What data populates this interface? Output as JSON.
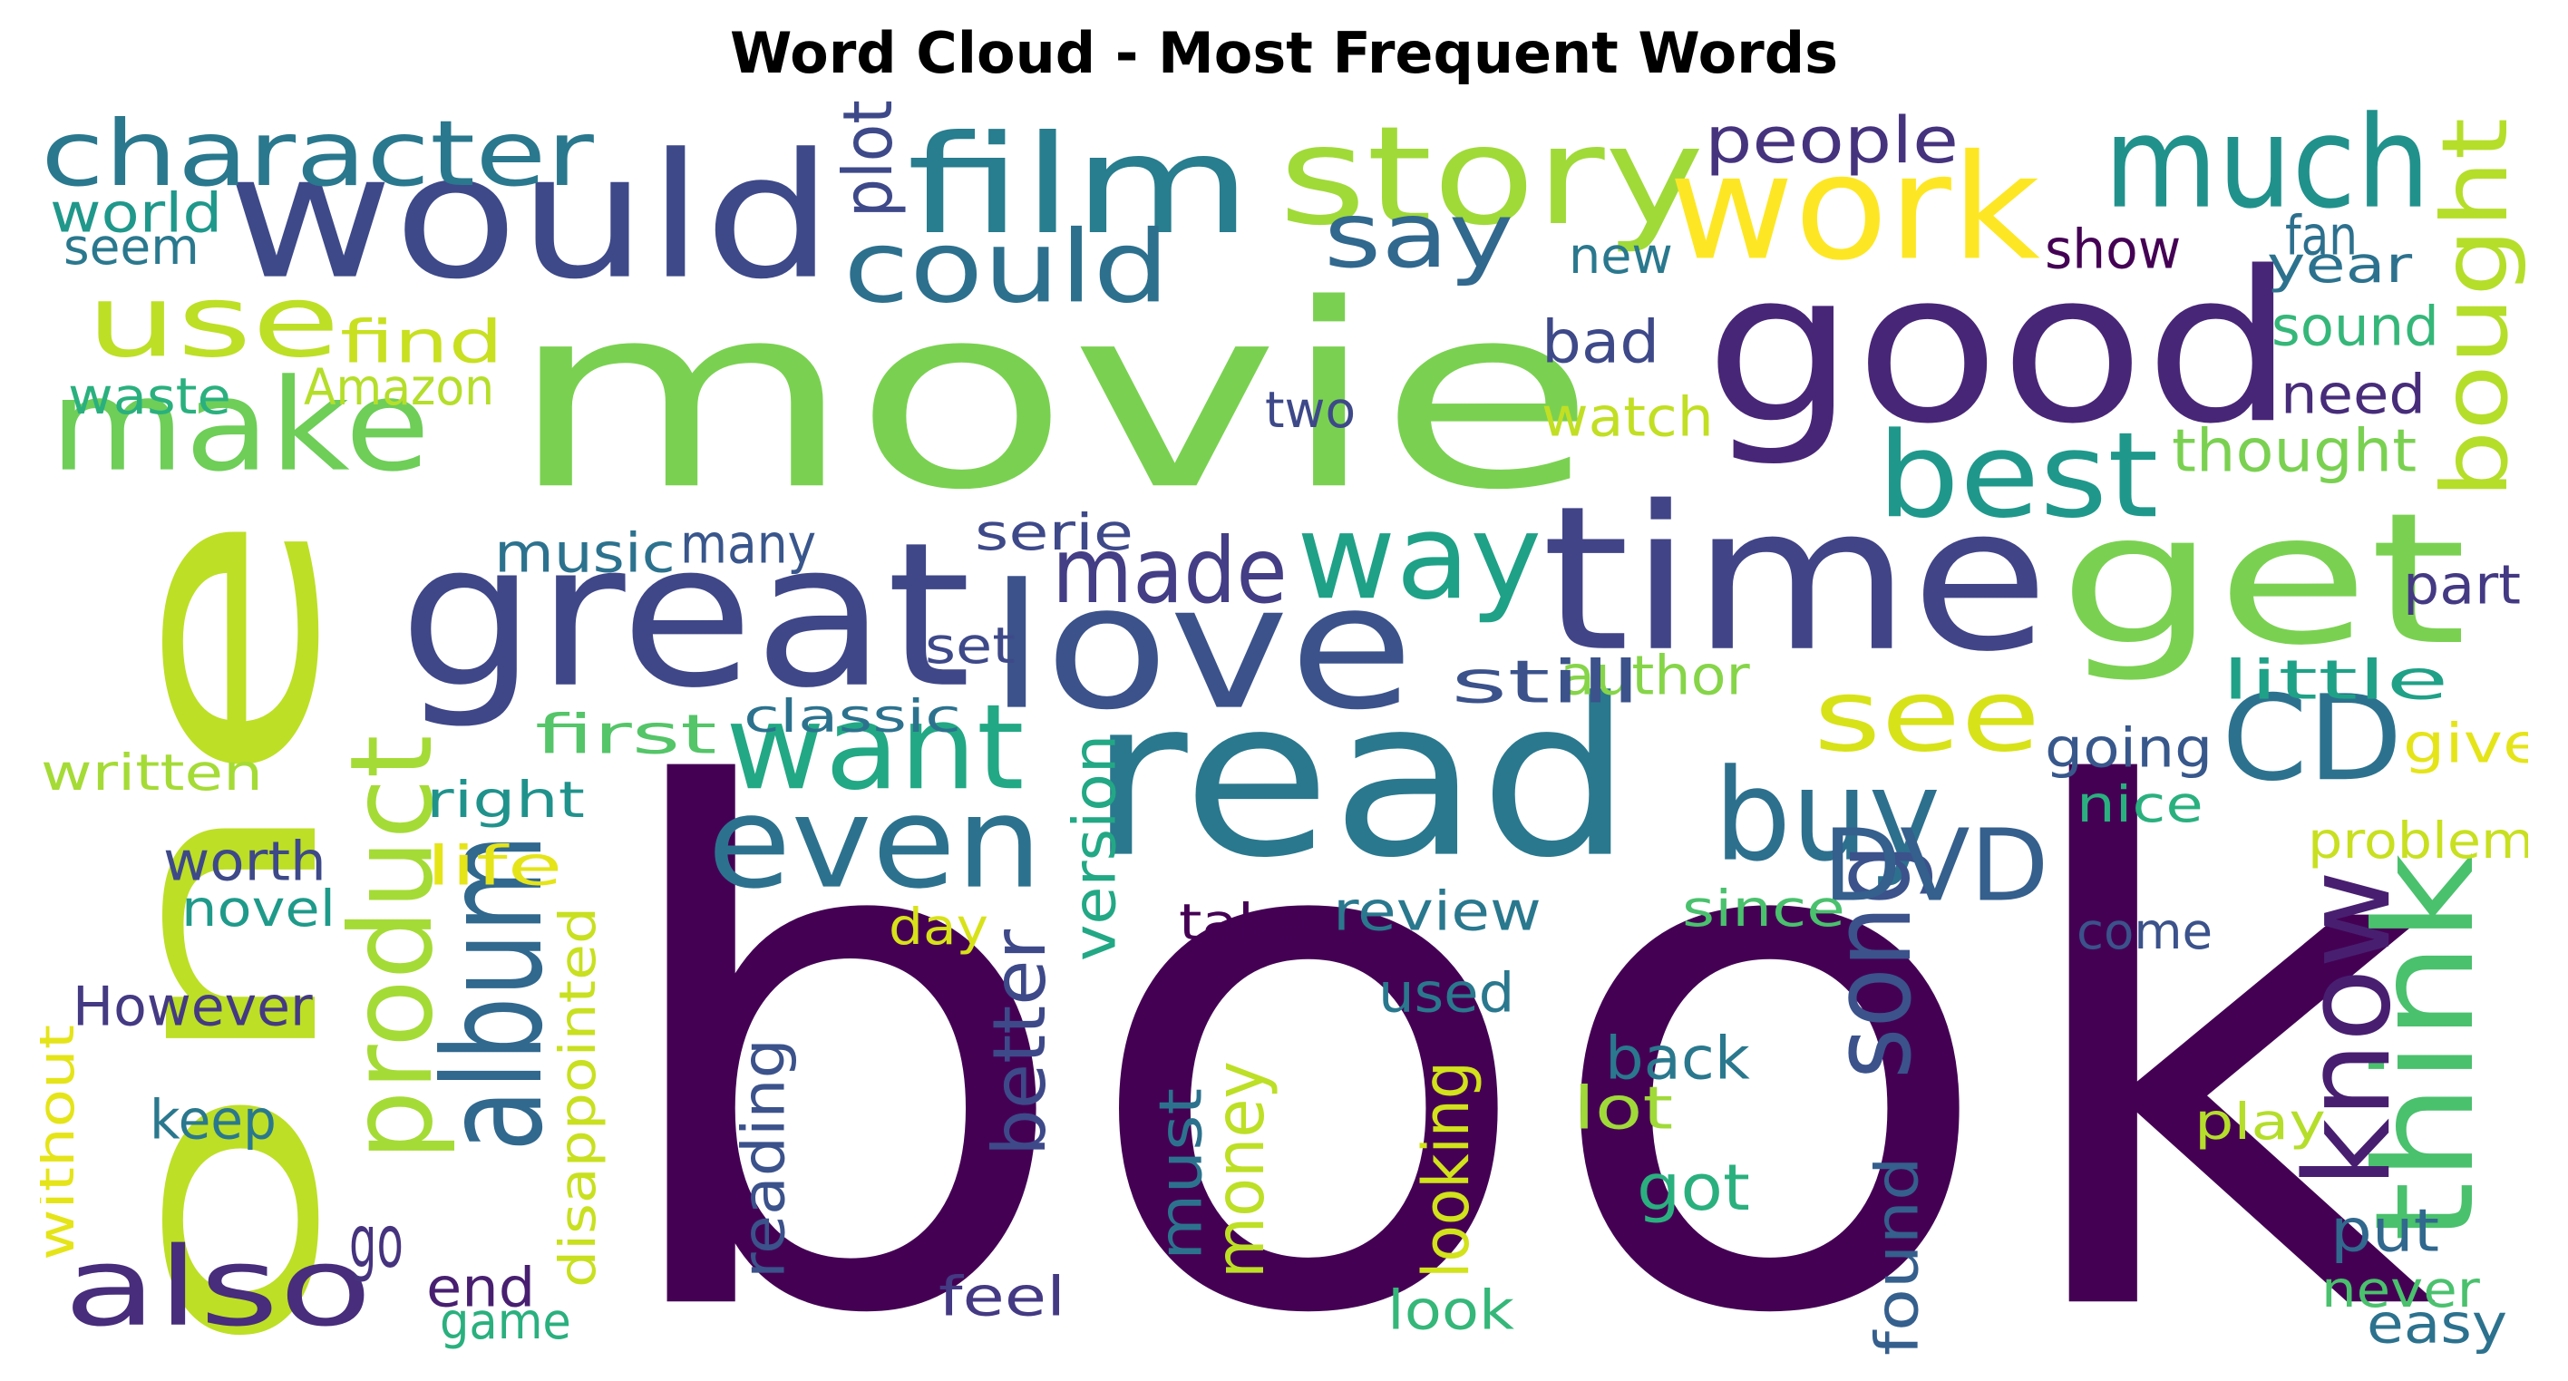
{
  "chart_data": {
    "type": "wordcloud",
    "title": "Word Cloud - Most Frequent Words",
    "words": [
      {
        "text": "book",
        "color": "#440154"
      },
      {
        "text": "one",
        "color": "#bddf26"
      },
      {
        "text": "movie",
        "color": "#7ad151"
      },
      {
        "text": "read",
        "color": "#2a788e"
      },
      {
        "text": "good",
        "color": "#482677"
      },
      {
        "text": "great",
        "color": "#3f4788"
      },
      {
        "text": "time",
        "color": "#414487"
      },
      {
        "text": "get",
        "color": "#7ad151"
      },
      {
        "text": "would",
        "color": "#3e4989"
      },
      {
        "text": "love",
        "color": "#3b528b"
      },
      {
        "text": "film",
        "color": "#287d8e"
      },
      {
        "text": "story",
        "color": "#a0da39"
      },
      {
        "text": "work",
        "color": "#fde725"
      },
      {
        "text": "much",
        "color": "#21918c"
      },
      {
        "text": "make",
        "color": "#6ece58"
      },
      {
        "text": "even",
        "color": "#2c728e"
      },
      {
        "text": "want",
        "color": "#22a884"
      },
      {
        "text": "also",
        "color": "#472d7b"
      },
      {
        "text": "album",
        "color": "#31688e"
      },
      {
        "text": "product",
        "color": "#a5db36"
      },
      {
        "text": "think",
        "color": "#4ac16d"
      },
      {
        "text": "way",
        "color": "#1fa187"
      },
      {
        "text": "buy",
        "color": "#2d708e"
      },
      {
        "text": "CD",
        "color": "#2c728e"
      },
      {
        "text": "best",
        "color": "#1f988b"
      },
      {
        "text": "character",
        "color": "#2a788e"
      },
      {
        "text": "use",
        "color": "#bddf26"
      },
      {
        "text": "could",
        "color": "#2d708e"
      },
      {
        "text": "know",
        "color": "#481f70"
      },
      {
        "text": "see",
        "color": "#d8e219"
      },
      {
        "text": "made",
        "color": "#433e85"
      },
      {
        "text": "song",
        "color": "#3b528b"
      },
      {
        "text": "say",
        "color": "#31688e"
      },
      {
        "text": "DVD",
        "color": "#355f8d"
      },
      {
        "text": "bought",
        "color": "#b5de2b"
      },
      {
        "text": "people",
        "color": "#46337e"
      },
      {
        "text": "plot",
        "color": "#3e4989"
      },
      {
        "text": "world",
        "color": "#1f988b"
      },
      {
        "text": "seem",
        "color": "#2a788e"
      },
      {
        "text": "find",
        "color": "#c8e020"
      },
      {
        "text": "Amazon",
        "color": "#b5de2b"
      },
      {
        "text": "waste",
        "color": "#2ab07f"
      },
      {
        "text": "new",
        "color": "#2a788e"
      },
      {
        "text": "bad",
        "color": "#3e4989"
      },
      {
        "text": "two",
        "color": "#3e4989"
      },
      {
        "text": "watch",
        "color": "#c2df23"
      },
      {
        "text": "show",
        "color": "#440154"
      },
      {
        "text": "fan",
        "color": "#2d708e"
      },
      {
        "text": "year",
        "color": "#2c728e"
      },
      {
        "text": "sound",
        "color": "#35b779"
      },
      {
        "text": "need",
        "color": "#472c7a"
      },
      {
        "text": "thought",
        "color": "#7ad151"
      },
      {
        "text": "music",
        "color": "#2c728e"
      },
      {
        "text": "many",
        "color": "#39568c"
      },
      {
        "text": "serie",
        "color": "#3e4989"
      },
      {
        "text": "part",
        "color": "#443983"
      },
      {
        "text": "author",
        "color": "#86d549"
      },
      {
        "text": "little",
        "color": "#1fa187"
      },
      {
        "text": "still",
        "color": "#3b528b"
      },
      {
        "text": "set",
        "color": "#3e4989"
      },
      {
        "text": "classic",
        "color": "#2c728e"
      },
      {
        "text": "first",
        "color": "#54c568"
      },
      {
        "text": "written",
        "color": "#a5db36"
      },
      {
        "text": "going",
        "color": "#38588c"
      },
      {
        "text": "give",
        "color": "#e5e419"
      },
      {
        "text": "right",
        "color": "#20928c"
      },
      {
        "text": "nice",
        "color": "#2ab07f"
      },
      {
        "text": "problem",
        "color": "#c8e020"
      },
      {
        "text": "worth",
        "color": "#3e4989"
      },
      {
        "text": "life",
        "color": "#e5e419"
      },
      {
        "text": "novel",
        "color": "#1f9a8a"
      },
      {
        "text": "review",
        "color": "#2a788e"
      },
      {
        "text": "since",
        "color": "#4ac16d"
      },
      {
        "text": "come",
        "color": "#3b528b"
      },
      {
        "text": "day",
        "color": "#d8e219"
      },
      {
        "text": "take",
        "color": "#440154"
      },
      {
        "text": "version",
        "color": "#22a884"
      },
      {
        "text": "However",
        "color": "#443983"
      },
      {
        "text": "used",
        "color": "#2a788e"
      },
      {
        "text": "disappointed",
        "color": "#c8e020"
      },
      {
        "text": "better",
        "color": "#3e4989"
      },
      {
        "text": "back",
        "color": "#2a788e"
      },
      {
        "text": "lot",
        "color": "#a0da39"
      },
      {
        "text": "play",
        "color": "#b5de2b"
      },
      {
        "text": "keep",
        "color": "#2a788e"
      },
      {
        "text": "without",
        "color": "#e5e419"
      },
      {
        "text": "reading",
        "color": "#3b528b"
      },
      {
        "text": "money",
        "color": "#bddf26"
      },
      {
        "text": "must",
        "color": "#2c728e"
      },
      {
        "text": "looking",
        "color": "#d2e21b"
      },
      {
        "text": "got",
        "color": "#2ab07f"
      },
      {
        "text": "go",
        "color": "#46337e"
      },
      {
        "text": "put",
        "color": "#31688e"
      },
      {
        "text": "end",
        "color": "#481f70"
      },
      {
        "text": "found",
        "color": "#355f8d"
      },
      {
        "text": "feel",
        "color": "#443983"
      },
      {
        "text": "never",
        "color": "#4ac16d"
      },
      {
        "text": "game",
        "color": "#2ab07f"
      },
      {
        "text": "look",
        "color": "#35b779"
      },
      {
        "text": "easy",
        "color": "#2c728e"
      }
    ]
  }
}
